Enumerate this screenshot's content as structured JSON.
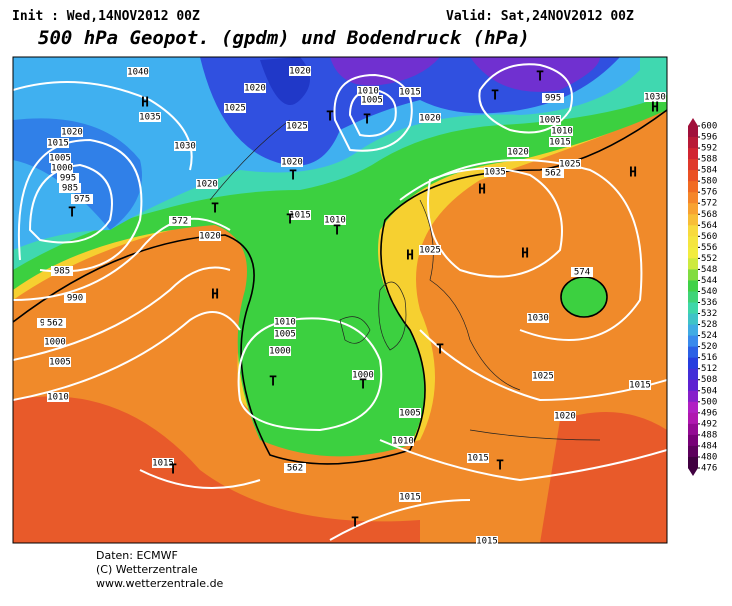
{
  "header": {
    "init": "Init : Wed,14NOV2012 00Z",
    "valid": "Valid: Sat,24NOV2012 00Z",
    "title": "500 hPa Geopot. (gpdm) und Bodendruck (hPa)"
  },
  "colorbar": {
    "levels": [
      600,
      596,
      592,
      588,
      584,
      580,
      576,
      572,
      568,
      564,
      560,
      556,
      552,
      548,
      544,
      540,
      536,
      532,
      528,
      524,
      520,
      516,
      512,
      508,
      504,
      500,
      496,
      492,
      488,
      484,
      480,
      476
    ]
  },
  "map_labels": [
    "1040",
    "H",
    "1035",
    "1020",
    "1015",
    "1005",
    "1000",
    "995",
    "985",
    "975",
    "T",
    "985",
    "990",
    "995",
    "1000",
    "1005",
    "1010",
    "1030",
    "1020",
    "1020",
    "H",
    "T",
    "1025",
    "1020",
    "1020",
    "1025",
    "T",
    "1020",
    "T",
    "1015",
    "T",
    "1010",
    "T",
    "1010",
    "1005",
    "T",
    "1015",
    "1020",
    "T",
    "T",
    "995",
    "1005",
    "1010",
    "1015",
    "1020",
    "1025",
    "H",
    "1030",
    "H",
    "H",
    "1035",
    "562",
    "H",
    "1025",
    "H",
    "574",
    "1030",
    "T",
    "1025",
    "1020",
    "1015",
    "1010",
    "1005",
    "1000",
    "T",
    "1000",
    "T",
    "1005",
    "1010",
    "562",
    "1015",
    "T",
    "1015",
    "1015",
    "T",
    "T",
    "1015",
    "562",
    "572"
  ],
  "footer": [
    "Daten: ECMWF",
    "(C) Wetterzentrale",
    "www.wetterzentrale.de"
  ]
}
